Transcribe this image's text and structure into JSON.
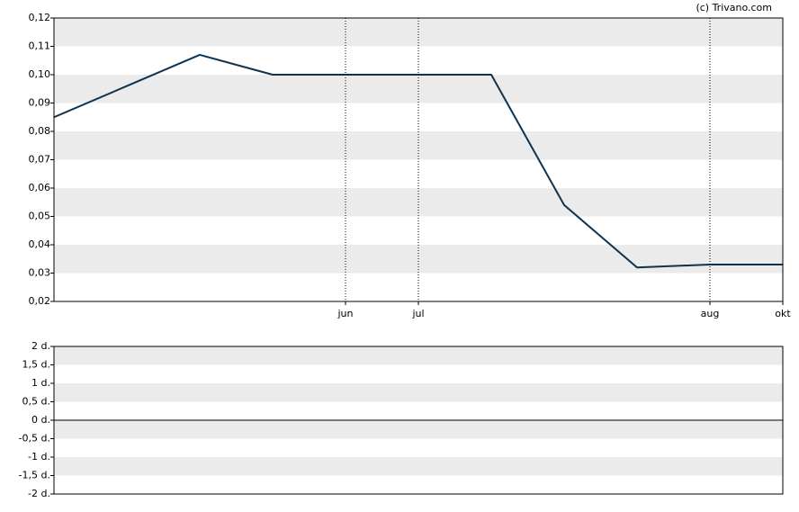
{
  "chart_data": [
    {
      "type": "line",
      "annotation": "(c) Trivano.com",
      "categories": [
        null,
        null,
        null,
        null,
        "jun",
        "jul",
        null,
        null,
        null,
        "aug",
        "okt"
      ],
      "series": [
        {
          "color": "#0e3350",
          "values": [
            0.085,
            0.096,
            0.107,
            0.1,
            0.1,
            0.1,
            0.1,
            0.054,
            0.032,
            0.033,
            0.033
          ]
        }
      ],
      "ylim": [
        0.02,
        0.12
      ],
      "yticks": [
        {
          "value": 0.02,
          "label": "0,02"
        },
        {
          "value": 0.03,
          "label": "0,03"
        },
        {
          "value": 0.04,
          "label": "0,04"
        },
        {
          "value": 0.05,
          "label": "0,05"
        },
        {
          "value": 0.06,
          "label": "0,06"
        },
        {
          "value": 0.07,
          "label": "0,07"
        },
        {
          "value": 0.08,
          "label": "0,08"
        },
        {
          "value": 0.09,
          "label": "0,09"
        },
        {
          "value": 0.1,
          "label": "0,10"
        },
        {
          "value": 0.11,
          "label": "0,11"
        },
        {
          "value": 0.12,
          "label": "0,12"
        }
      ]
    },
    {
      "type": "volume",
      "ylim": [
        -2,
        2
      ],
      "yticks": [
        {
          "value": -2,
          "label": "-2 d."
        },
        {
          "value": -1.5,
          "label": "-1,5 d."
        },
        {
          "value": -1,
          "label": "-1 d."
        },
        {
          "value": -0.5,
          "label": "-0,5 d."
        },
        {
          "value": 0,
          "label": "0 d."
        },
        {
          "value": 0.5,
          "label": "0,5 d."
        },
        {
          "value": 1,
          "label": "1 d."
        },
        {
          "value": 1.5,
          "label": "1,5 d."
        },
        {
          "value": 2,
          "label": "2 d."
        }
      ]
    }
  ]
}
